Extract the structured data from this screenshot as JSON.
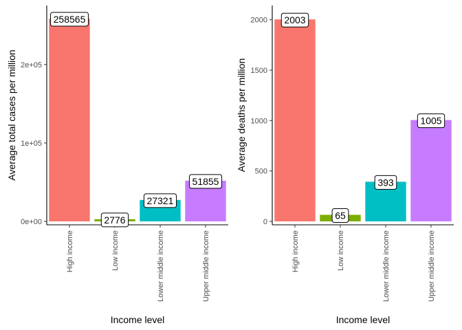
{
  "chart_data": [
    {
      "type": "bar",
      "categories": [
        "High income",
        "Low income",
        "Lower middle income",
        "Upper middle income"
      ],
      "values": [
        258565,
        2776,
        27321,
        51855
      ],
      "value_labels": [
        "258565",
        "2776",
        "27321",
        "51855"
      ],
      "colors": [
        "#F8766D",
        "#7CAE00",
        "#00BFC4",
        "#C77CFF"
      ],
      "xlabel": "Income level",
      "ylabel": "Average total cases per million",
      "ylim": [
        0,
        270000
      ],
      "yticks": [
        0,
        100000,
        200000
      ],
      "ytick_labels": [
        "0e+00",
        "1e+05",
        "2e+05"
      ],
      "grid": false,
      "legend": "none"
    },
    {
      "type": "bar",
      "categories": [
        "High income",
        "Low income",
        "Lower middle income",
        "Upper middle income"
      ],
      "values": [
        2003,
        65,
        393,
        1005
      ],
      "value_labels": [
        "2003",
        "65",
        "393",
        "1005"
      ],
      "colors": [
        "#F8766D",
        "#7CAE00",
        "#00BFC4",
        "#C77CFF"
      ],
      "xlabel": "Income level",
      "ylabel": "Average deaths per million",
      "ylim": [
        0,
        2100
      ],
      "yticks": [
        0,
        500,
        1000,
        1500,
        2000
      ],
      "ytick_labels": [
        "0",
        "500",
        "1000",
        "1500",
        "2000"
      ],
      "grid": false,
      "legend": "none"
    }
  ]
}
